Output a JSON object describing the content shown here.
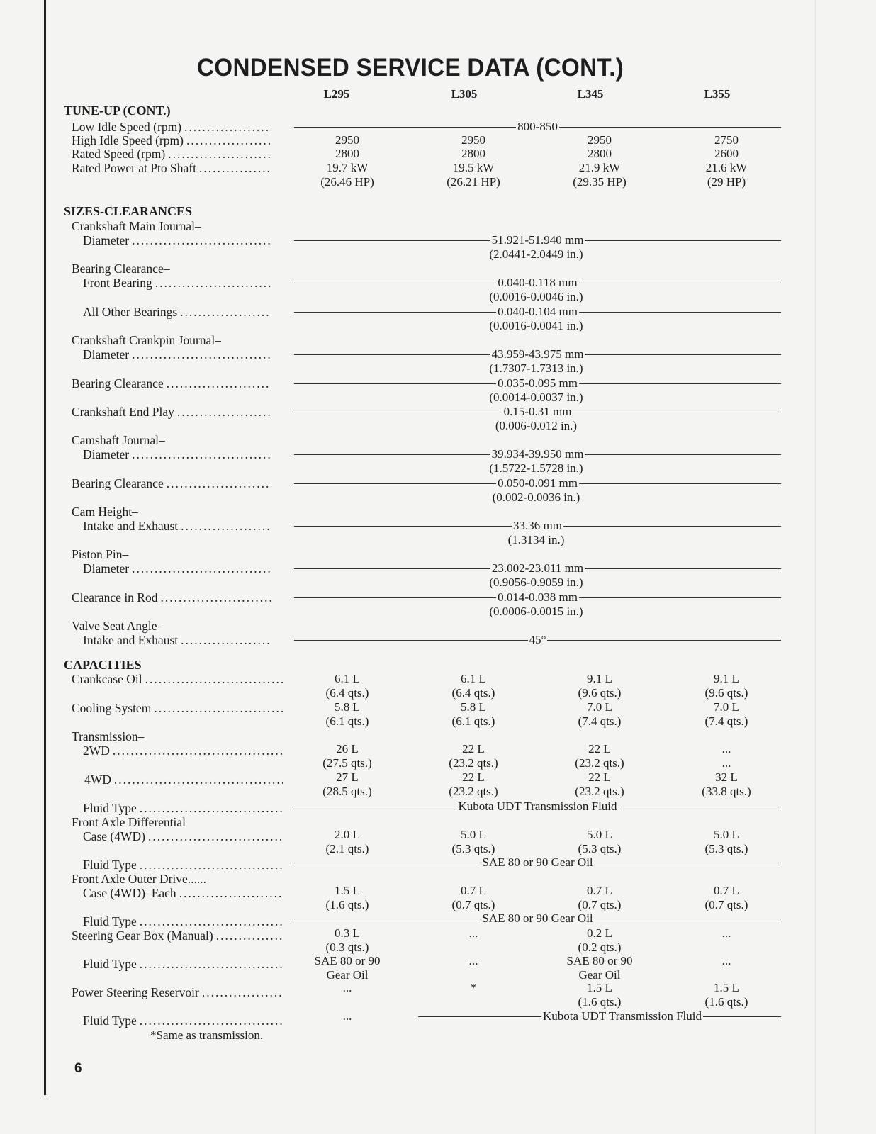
{
  "title": "CONDENSED SERVICE DATA (CONT.)",
  "columns": [
    "L295",
    "L305",
    "L345",
    "L355"
  ],
  "sections": [
    {
      "heading": "TUNE-UP (CONT.)",
      "rows": [
        {
          "label": [
            "Low Idle Speed (rpm)"
          ],
          "span": [
            "800-850"
          ]
        },
        {
          "label": [
            "High Idle Speed (rpm)"
          ],
          "values": [
            [
              "2950"
            ],
            [
              "2950"
            ],
            [
              "2950"
            ],
            [
              "2750"
            ]
          ]
        },
        {
          "label": [
            "Rated Speed (rpm)"
          ],
          "values": [
            [
              "2800"
            ],
            [
              "2800"
            ],
            [
              "2800"
            ],
            [
              "2600"
            ]
          ]
        },
        {
          "label": [
            "Rated Power at Pto Shaft"
          ],
          "values": [
            [
              "19.7 kW",
              "(26.46 HP)"
            ],
            [
              "19.5 kW",
              "(26.21 HP)"
            ],
            [
              "21.9 kW",
              "(29.35 HP)"
            ],
            [
              "21.6 kW",
              "(29 HP)"
            ]
          ]
        }
      ]
    },
    {
      "heading": "SIZES-CLEARANCES",
      "rows": [
        {
          "label": [
            "Crankshaft Main Journal–",
            "Diameter"
          ],
          "span": [
            "51.921-51.940 mm",
            "(2.0441-2.0449 in.)"
          ]
        },
        {
          "label": [
            "Bearing Clearance–",
            "Front Bearing"
          ],
          "span": [
            "0.040-0.118 mm",
            "(0.0016-0.0046 in.)"
          ]
        },
        {
          "label": [
            "All Other Bearings"
          ],
          "span": [
            "0.040-0.104 mm",
            "(0.0016-0.0041 in.)"
          ]
        },
        {
          "label": [
            "Crankshaft Crankpin Journal–",
            "Diameter"
          ],
          "span": [
            "43.959-43.975 mm",
            "(1.7307-1.7313 in.)"
          ]
        },
        {
          "label": [
            "Bearing Clearance"
          ],
          "span": [
            "0.035-0.095 mm",
            "(0.0014-0.0037 in.)"
          ]
        },
        {
          "label": [
            "Crankshaft End Play"
          ],
          "span": [
            "0.15-0.31 mm",
            "(0.006-0.012 in.)"
          ]
        },
        {
          "label": [
            "Camshaft Journal–",
            "Diameter"
          ],
          "span": [
            "39.934-39.950 mm",
            "(1.5722-1.5728 in.)"
          ]
        },
        {
          "label": [
            "Bearing Clearance"
          ],
          "span": [
            "0.050-0.091 mm",
            "(0.002-0.0036 in.)"
          ]
        },
        {
          "label": [
            "Cam Height–",
            "Intake and Exhaust"
          ],
          "span": [
            "33.36 mm",
            "(1.3134 in.)"
          ]
        },
        {
          "label": [
            "Piston Pin–",
            "Diameter"
          ],
          "span": [
            "23.002-23.011 mm",
            "(0.9056-0.9059 in.)"
          ]
        },
        {
          "label": [
            "Clearance in Rod"
          ],
          "span": [
            "0.014-0.038 mm",
            "(0.0006-0.0015 in.)"
          ]
        },
        {
          "label": [
            "Valve Seat Angle–",
            "Intake and Exhaust"
          ],
          "span": [
            "45°"
          ]
        }
      ]
    },
    {
      "heading": "CAPACITIES",
      "rows": [
        {
          "label": [
            "Crankcase Oil"
          ],
          "values": [
            [
              "6.1 L",
              "(6.4 qts.)"
            ],
            [
              "6.1 L",
              "(6.4 qts.)"
            ],
            [
              "9.1 L",
              "(9.6 qts.)"
            ],
            [
              "9.1 L",
              "(9.6 qts.)"
            ]
          ]
        },
        {
          "label": [
            "Cooling System"
          ],
          "values": [
            [
              "5.8 L",
              "(6.1 qts.)"
            ],
            [
              "5.8 L",
              "(6.1 qts.)"
            ],
            [
              "7.0 L",
              "(7.4 qts.)"
            ],
            [
              "7.0 L",
              "(7.4 qts.)"
            ]
          ]
        },
        {
          "label": [
            "Transmission–",
            "2WD"
          ],
          "values": [
            [
              "26 L",
              "(27.5 qts.)"
            ],
            [
              "22 L",
              "(23.2 qts.)"
            ],
            [
              "22 L",
              "(23.2 qts.)"
            ],
            [
              "...",
              "..."
            ]
          ]
        },
        {
          "label": [
            "4WD"
          ],
          "values": [
            [
              "27 L",
              "(28.5 qts.)"
            ],
            [
              "22 L",
              "(23.2 qts.)"
            ],
            [
              "22 L",
              "(23.2 qts.)"
            ],
            [
              "32 L",
              "(33.8 qts.)"
            ]
          ]
        },
        {
          "label": [
            "Fluid Type"
          ],
          "span": [
            "Kubota UDT Transmission Fluid"
          ]
        },
        {
          "label": [
            "Front Axle Differential",
            "Case (4WD)"
          ],
          "values": [
            [
              "2.0 L",
              "(2.1 qts.)"
            ],
            [
              "5.0 L",
              "(5.3 qts.)"
            ],
            [
              "5.0 L",
              "(5.3 qts.)"
            ],
            [
              "5.0 L",
              "(5.3 qts.)"
            ]
          ]
        },
        {
          "label": [
            "Fluid Type"
          ],
          "span": [
            "SAE 80 or 90 Gear Oil"
          ]
        },
        {
          "label": [
            "Front Axle Outer Drive......",
            "Case (4WD)–Each"
          ],
          "values": [
            [
              "1.5 L",
              "(1.6 qts.)"
            ],
            [
              "0.7 L",
              "(0.7 qts.)"
            ],
            [
              "0.7 L",
              "(0.7 qts.)"
            ],
            [
              "0.7 L",
              "(0.7 qts.)"
            ]
          ]
        },
        {
          "label": [
            "Fluid Type"
          ],
          "span": [
            "SAE 80 or 90 Gear Oil"
          ]
        },
        {
          "label": [
            "Steering Gear Box (Manual)"
          ],
          "values": [
            [
              "0.3 L",
              "(0.3 qts.)"
            ],
            [
              "..."
            ],
            [
              "0.2 L",
              "(0.2 qts.)"
            ],
            [
              "..."
            ]
          ]
        },
        {
          "label": [
            "Fluid Type"
          ],
          "values": [
            [
              "SAE 80 or 90",
              "Gear Oil"
            ],
            [
              "..."
            ],
            [
              "SAE 80 or 90",
              "Gear Oil"
            ],
            [
              "..."
            ]
          ]
        },
        {
          "label": [
            "Power Steering Reservoir"
          ],
          "values": [
            [
              "..."
            ],
            [
              "*"
            ],
            [
              "1.5 L",
              "(1.6 qts.)"
            ],
            [
              "1.5 L",
              "(1.6 qts.)"
            ]
          ]
        },
        {
          "label": [
            "Fluid Type"
          ],
          "values": [
            [
              "..."
            ]
          ],
          "span": [
            "Kubota UDT Transmission Fluid"
          ]
        }
      ]
    }
  ],
  "footnote": "*Same as transmission.",
  "page_number": "6"
}
